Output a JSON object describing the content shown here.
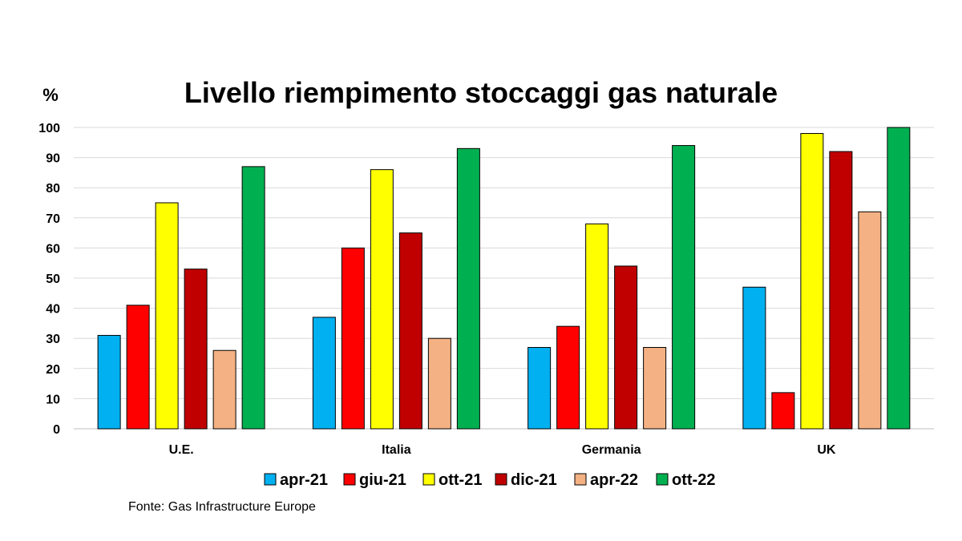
{
  "chart_data": {
    "type": "bar",
    "title": "Livello riempimento stoccaggi gas naturale",
    "ylabel": "%",
    "ylim": [
      0,
      100
    ],
    "yticks": [
      0,
      10,
      20,
      30,
      40,
      50,
      60,
      70,
      80,
      90,
      100
    ],
    "categories": [
      "U.E.",
      "Italia",
      "Germania",
      "UK"
    ],
    "series": [
      {
        "name": "apr-21",
        "color": "#00b0f0",
        "values": [
          31,
          37,
          27,
          47
        ]
      },
      {
        "name": "giu-21",
        "color": "#ff0000",
        "values": [
          41,
          60,
          34,
          12
        ]
      },
      {
        "name": "ott-21",
        "color": "#ffff00",
        "values": [
          75,
          86,
          68,
          98
        ]
      },
      {
        "name": "dic-21",
        "color": "#c00000",
        "values": [
          53,
          65,
          54,
          92
        ]
      },
      {
        "name": "apr-22",
        "color": "#f4b183",
        "values": [
          26,
          30,
          27,
          72
        ]
      },
      {
        "name": "ott-22",
        "color": "#00b050",
        "values": [
          87,
          93,
          94,
          100
        ]
      }
    ],
    "grid": true,
    "legend_position": "bottom",
    "source": "Fonte: Gas Infrastructure Europe"
  }
}
